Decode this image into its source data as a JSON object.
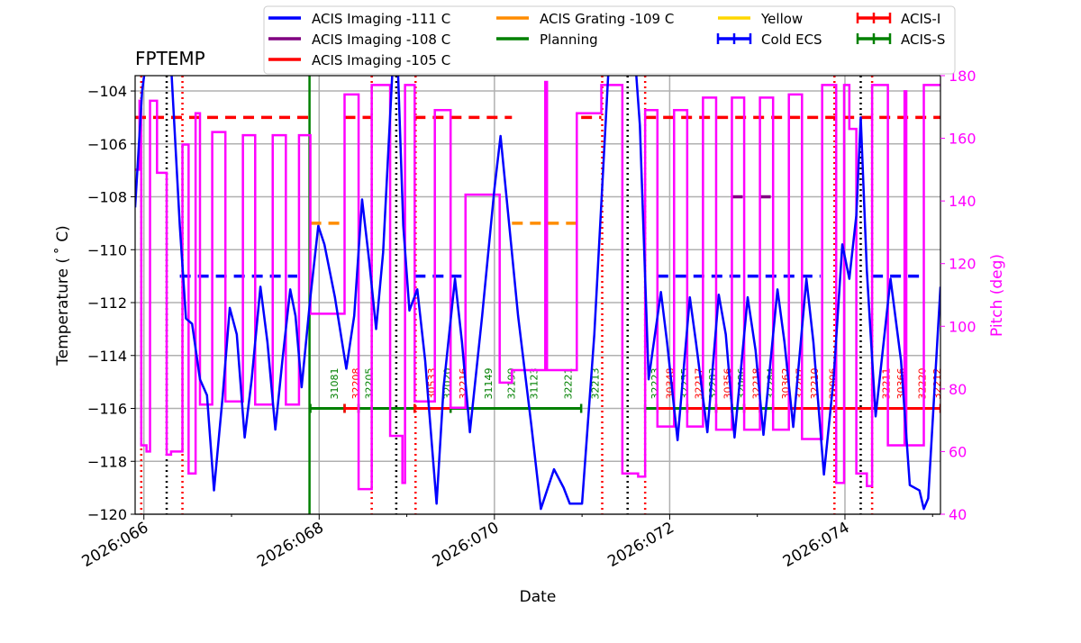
{
  "chart_data": {
    "type": "line",
    "title": "FPTEMP",
    "xlabel": "Date",
    "ylabel": "Temperature ($^\\circ$C)",
    "ylabel_display": "Temperature ( ˚ C)",
    "y2label": "Pitch (deg)",
    "xlim": [
      65.9,
      75.09
    ],
    "ylim": [
      -120,
      -103.42
    ],
    "y2lim": [
      40,
      180
    ],
    "grid": true,
    "legend_placement": "top (above plot)",
    "x_ticks": [
      {
        "v": 66,
        "label": "2026:066"
      },
      {
        "v": 68,
        "label": "2026:068"
      },
      {
        "v": 70,
        "label": "2026:070"
      },
      {
        "v": 72,
        "label": "2026:072"
      },
      {
        "v": 74,
        "label": "2026:074"
      }
    ],
    "y_ticks": [
      -104,
      -106,
      -108,
      -110,
      -112,
      -114,
      -116,
      -118,
      -120
    ],
    "y2_ticks": [
      40,
      60,
      80,
      100,
      120,
      140,
      160,
      180
    ],
    "colors": {
      "temp": "#0000ff",
      "pitch": "#ff00ff",
      "red": "#ff0000",
      "green": "#008000",
      "orange": "#ff8c00",
      "purple": "#800080",
      "yellow": "#ffd700",
      "black": "#000000"
    },
    "legend": [
      {
        "label": "ACIS Imaging -111 C",
        "color": "#0000ff",
        "kind": "line"
      },
      {
        "label": "ACIS Imaging -108 C",
        "color": "#800080",
        "kind": "line"
      },
      {
        "label": "ACIS Imaging -105 C",
        "color": "#ff0000",
        "kind": "line"
      },
      {
        "label": "ACIS Grating -109 C",
        "color": "#ff8c00",
        "kind": "line"
      },
      {
        "label": "Planning",
        "color": "#008000",
        "kind": "line"
      },
      {
        "label": "Yellow",
        "color": "#ffd700",
        "kind": "line"
      },
      {
        "label": "Cold ECS",
        "color": "#0000ff",
        "kind": "err"
      },
      {
        "label": "ACIS-I",
        "color": "#ff0000",
        "kind": "err"
      },
      {
        "label": "ACIS-S",
        "color": "#008000",
        "kind": "err"
      }
    ],
    "temperature": [
      [
        65.9,
        -108.4
      ],
      [
        65.98,
        -104
      ],
      [
        66.02,
        -103
      ],
      [
        66.31,
        -103
      ],
      [
        66.41,
        -109.1
      ],
      [
        66.48,
        -112.6
      ],
      [
        66.55,
        -112.8
      ],
      [
        66.64,
        -114.9
      ],
      [
        66.72,
        -115.5
      ],
      [
        66.8,
        -119.1
      ],
      [
        66.9,
        -115.5
      ],
      [
        66.98,
        -112.2
      ],
      [
        67.06,
        -113.2
      ],
      [
        67.15,
        -117.1
      ],
      [
        67.23,
        -114.9
      ],
      [
        67.33,
        -111.4
      ],
      [
        67.41,
        -113.5
      ],
      [
        67.5,
        -116.8
      ],
      [
        67.58,
        -114.2
      ],
      [
        67.67,
        -111.5
      ],
      [
        67.73,
        -112.5
      ],
      [
        67.8,
        -115.2
      ],
      [
        67.9,
        -111.8
      ],
      [
        67.99,
        -109.1
      ],
      [
        68.06,
        -109.8
      ],
      [
        68.18,
        -111.8
      ],
      [
        68.31,
        -114.5
      ],
      [
        68.4,
        -112.5
      ],
      [
        68.49,
        -108.1
      ],
      [
        68.57,
        -110.4
      ],
      [
        68.65,
        -113.0
      ],
      [
        68.73,
        -110.1
      ],
      [
        68.84,
        -103
      ],
      [
        68.9,
        -103.3
      ],
      [
        68.96,
        -109.1
      ],
      [
        69.03,
        -112.3
      ],
      [
        69.12,
        -111.5
      ],
      [
        69.21,
        -114.2
      ],
      [
        69.34,
        -119.6
      ],
      [
        69.42,
        -115.2
      ],
      [
        69.55,
        -111.1
      ],
      [
        69.63,
        -113.5
      ],
      [
        69.72,
        -116.9
      ],
      [
        69.86,
        -112.5
      ],
      [
        70.0,
        -107.7
      ],
      [
        70.07,
        -105.7
      ],
      [
        70.17,
        -109.1
      ],
      [
        70.27,
        -112.5
      ],
      [
        70.42,
        -116.6
      ],
      [
        70.53,
        -119.8
      ],
      [
        70.58,
        -119.3
      ],
      [
        70.68,
        -118.3
      ],
      [
        70.79,
        -119.0
      ],
      [
        70.86,
        -119.6
      ],
      [
        71.0,
        -119.6
      ],
      [
        71.14,
        -113.2
      ],
      [
        71.3,
        -103.3
      ],
      [
        71.61,
        -103
      ],
      [
        71.66,
        -105.3
      ],
      [
        71.76,
        -114.9
      ],
      [
        71.9,
        -111.6
      ],
      [
        71.97,
        -113.5
      ],
      [
        72.09,
        -117.2
      ],
      [
        72.23,
        -111.8
      ],
      [
        72.3,
        -113.5
      ],
      [
        72.43,
        -116.9
      ],
      [
        72.56,
        -111.7
      ],
      [
        72.64,
        -113.2
      ],
      [
        72.74,
        -117.1
      ],
      [
        72.89,
        -111.8
      ],
      [
        72.98,
        -113.8
      ],
      [
        73.07,
        -117.0
      ],
      [
        73.23,
        -111.5
      ],
      [
        73.31,
        -113.5
      ],
      [
        73.41,
        -116.7
      ],
      [
        73.56,
        -111.1
      ],
      [
        73.64,
        -113.5
      ],
      [
        73.76,
        -118.5
      ],
      [
        73.87,
        -114.9
      ],
      [
        73.97,
        -109.8
      ],
      [
        74.05,
        -111.1
      ],
      [
        74.13,
        -108.7
      ],
      [
        74.18,
        -105.0
      ],
      [
        74.25,
        -110.8
      ],
      [
        74.35,
        -116.3
      ],
      [
        74.52,
        -111.1
      ],
      [
        74.64,
        -114.2
      ],
      [
        74.74,
        -118.9
      ],
      [
        74.85,
        -119.1
      ],
      [
        74.9,
        -119.8
      ],
      [
        74.95,
        -119.4
      ],
      [
        75.09,
        -111.4
      ]
    ],
    "pitch_steps": [
      [
        65.9,
        150
      ],
      [
        65.95,
        172
      ],
      [
        65.97,
        62
      ],
      [
        66.03,
        60
      ],
      [
        66.07,
        172
      ],
      [
        66.15,
        149
      ],
      [
        66.26,
        59
      ],
      [
        66.31,
        60
      ],
      [
        66.44,
        158
      ],
      [
        66.51,
        53
      ],
      [
        66.59,
        168
      ],
      [
        66.64,
        75
      ],
      [
        66.78,
        162
      ],
      [
        66.93,
        76
      ],
      [
        67.13,
        161
      ],
      [
        67.27,
        75
      ],
      [
        67.47,
        161
      ],
      [
        67.62,
        75
      ],
      [
        67.77,
        161
      ],
      [
        67.9,
        104
      ],
      [
        68.29,
        174
      ],
      [
        68.45,
        48
      ],
      [
        68.6,
        177
      ],
      [
        68.81,
        65
      ],
      [
        68.95,
        50
      ],
      [
        68.98,
        177
      ],
      [
        69.09,
        76
      ],
      [
        69.32,
        169
      ],
      [
        69.5,
        74
      ],
      [
        69.67,
        142
      ],
      [
        70.06,
        82
      ],
      [
        70.2,
        86
      ],
      [
        70.58,
        178
      ],
      [
        70.6,
        86
      ],
      [
        70.94,
        168
      ],
      [
        71.22,
        177
      ],
      [
        71.46,
        53
      ],
      [
        71.64,
        52
      ],
      [
        71.72,
        169
      ],
      [
        71.86,
        68
      ],
      [
        72.05,
        169
      ],
      [
        72.2,
        68
      ],
      [
        72.38,
        173
      ],
      [
        72.53,
        67
      ],
      [
        72.71,
        173
      ],
      [
        72.85,
        67
      ],
      [
        73.03,
        173
      ],
      [
        73.18,
        67
      ],
      [
        73.36,
        174
      ],
      [
        73.51,
        64
      ],
      [
        73.74,
        177
      ],
      [
        73.9,
        50
      ],
      [
        73.99,
        177
      ],
      [
        74.05,
        163
      ],
      [
        74.13,
        53
      ],
      [
        74.25,
        49
      ],
      [
        74.31,
        177
      ],
      [
        74.49,
        62
      ],
      [
        74.68,
        175
      ],
      [
        74.7,
        62
      ],
      [
        74.9,
        177
      ],
      [
        75.09,
        177
      ]
    ],
    "limit_lines": [
      {
        "temp": -105,
        "color": "#ff0000",
        "ranges": [
          [
            65.9,
            67.9
          ],
          [
            68.29,
            68.6
          ],
          [
            69.09,
            70.2
          ],
          [
            70.99,
            71.22
          ],
          [
            71.72,
            75.09
          ]
        ]
      },
      {
        "temp": -111,
        "color": "#0000ff",
        "ranges": [
          [
            66.41,
            67.75
          ],
          [
            69.09,
            69.67
          ],
          [
            71.86,
            73.72
          ],
          [
            74.31,
            74.9
          ]
        ]
      },
      {
        "temp": -109,
        "color": "#ff8c00",
        "ranges": [
          [
            67.9,
            68.29
          ],
          [
            70.2,
            70.94
          ]
        ]
      },
      {
        "temp": -108,
        "color": "#800080",
        "ranges": [
          [
            72.71,
            72.85
          ],
          [
            73.03,
            73.18
          ]
        ]
      }
    ],
    "obsid_bar_temp": -116,
    "obsid_bars": [
      [
        67.9,
        68.29,
        "#008000"
      ],
      [
        68.29,
        68.45,
        "#ff0000"
      ],
      [
        68.45,
        69.09,
        "#008000"
      ],
      [
        69.09,
        69.5,
        "#ff0000"
      ],
      [
        69.5,
        70.99,
        "#008000"
      ],
      [
        71.72,
        71.86,
        "#008000"
      ],
      [
        71.86,
        72.05,
        "#ff0000"
      ],
      [
        72.05,
        72.2,
        "#008000"
      ],
      [
        72.2,
        72.38,
        "#ff0000"
      ],
      [
        72.38,
        72.53,
        "#008000"
      ],
      [
        72.53,
        72.71,
        "#ff0000"
      ],
      [
        72.71,
        72.85,
        "#008000"
      ],
      [
        72.85,
        73.03,
        "#ff0000"
      ],
      [
        73.03,
        73.18,
        "#008000"
      ],
      [
        73.18,
        75.09,
        "#ff0000"
      ]
    ],
    "vlines": [
      {
        "x": 67.89,
        "color": "#008000",
        "style": "solid"
      },
      {
        "x": 65.97,
        "color": "#ff0000",
        "style": "dotted"
      },
      {
        "x": 66.44,
        "color": "#ff0000",
        "style": "dotted"
      },
      {
        "x": 68.6,
        "color": "#ff0000",
        "style": "dotted"
      },
      {
        "x": 69.1,
        "color": "#ff0000",
        "style": "dotted"
      },
      {
        "x": 71.23,
        "color": "#ff0000",
        "style": "dotted"
      },
      {
        "x": 71.72,
        "color": "#ff0000",
        "style": "dotted"
      },
      {
        "x": 73.88,
        "color": "#ff0000",
        "style": "dotted"
      },
      {
        "x": 74.31,
        "color": "#ff0000",
        "style": "dotted"
      },
      {
        "x": 66.26,
        "color": "#000000",
        "style": "dotted"
      },
      {
        "x": 68.88,
        "color": "#000000",
        "style": "dotted"
      },
      {
        "x": 71.52,
        "color": "#000000",
        "style": "dotted"
      },
      {
        "x": 74.18,
        "color": "#000000",
        "style": "dotted"
      }
    ],
    "obsids": [
      {
        "x": 68.17,
        "label": "31081",
        "color": "#008000"
      },
      {
        "x": 68.42,
        "label": "32208",
        "color": "#ff0000"
      },
      {
        "x": 68.57,
        "label": "32205",
        "color": "#008000"
      },
      {
        "x": 69.28,
        "label": "30533",
        "color": "#ff0000"
      },
      {
        "x": 69.46,
        "label": "32020",
        "color": "#008000"
      },
      {
        "x": 69.64,
        "label": "32216",
        "color": "#ff0000"
      },
      {
        "x": 69.93,
        "label": "31149",
        "color": "#008000"
      },
      {
        "x": 70.19,
        "label": "32199",
        "color": "#008000"
      },
      {
        "x": 70.45,
        "label": "31123",
        "color": "#008000"
      },
      {
        "x": 70.84,
        "label": "32221",
        "color": "#008000"
      },
      {
        "x": 71.15,
        "label": "32213",
        "color": "#008000"
      },
      {
        "x": 71.83,
        "label": "32223",
        "color": "#008000"
      },
      {
        "x": 72.0,
        "label": "30348",
        "color": "#ff0000"
      },
      {
        "x": 72.17,
        "label": "32255",
        "color": "#008000"
      },
      {
        "x": 72.33,
        "label": "32217",
        "color": "#ff0000"
      },
      {
        "x": 72.49,
        "label": "32283",
        "color": "#008000"
      },
      {
        "x": 72.66,
        "label": "30356",
        "color": "#ff0000"
      },
      {
        "x": 72.82,
        "label": "32086",
        "color": "#008000"
      },
      {
        "x": 72.99,
        "label": "32218",
        "color": "#ff0000"
      },
      {
        "x": 73.15,
        "label": "32284",
        "color": "#008000"
      },
      {
        "x": 73.32,
        "label": "30362",
        "color": "#ff0000"
      },
      {
        "x": 73.48,
        "label": "32207",
        "color": "#ff0000"
      },
      {
        "x": 73.65,
        "label": "32210",
        "color": "#ff0000"
      },
      {
        "x": 73.86,
        "label": "32096",
        "color": "#ff0000"
      },
      {
        "x": 74.47,
        "label": "32211",
        "color": "#ff0000"
      },
      {
        "x": 74.64,
        "label": "30366",
        "color": "#ff0000"
      },
      {
        "x": 74.88,
        "label": "32220",
        "color": "#ff0000"
      },
      {
        "x": 75.05,
        "label": "32212",
        "color": "#ff0000"
      }
    ]
  }
}
